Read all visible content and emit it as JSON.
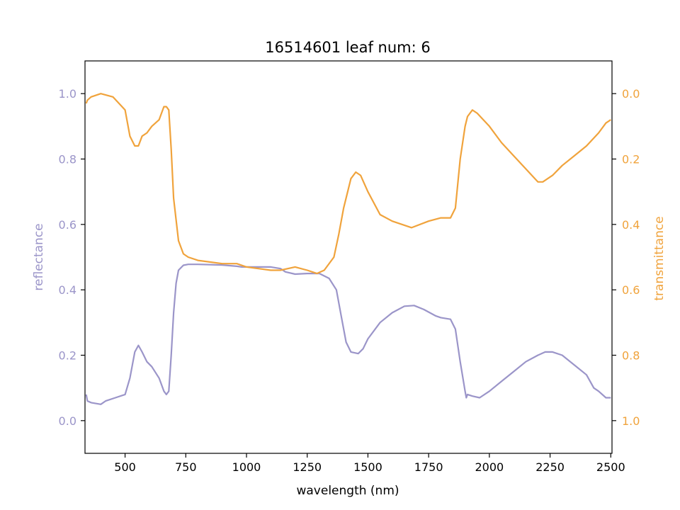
{
  "chart_data": {
    "type": "line",
    "title": "16514601 leaf num: 6",
    "xlabel": "wavelength (nm)",
    "ylabel_left": "reflectance",
    "ylabel_right": "transmittance",
    "xlim": [
      335,
      2505
    ],
    "ylim_left": [
      -0.1,
      1.1
    ],
    "ylim_right": [
      1.1,
      -0.1
    ],
    "right_axis_inverted": true,
    "xticks": [
      "500",
      "750",
      "1000",
      "1250",
      "1500",
      "1750",
      "2000",
      "2250",
      "2500"
    ],
    "yticks_left": [
      "0.0",
      "0.2",
      "0.4",
      "0.6",
      "0.8",
      "1.0"
    ],
    "yticks_right": [
      "0.0",
      "0.2",
      "0.4",
      "0.6",
      "0.8",
      "1.0"
    ],
    "grid": false,
    "legend": "none",
    "colors": {
      "reflectance": "#9b95c9",
      "transmittance": "#f0a33c",
      "axes": "#000000"
    },
    "series": [
      {
        "name": "reflectance",
        "axis": "left",
        "x": [
          340,
          345,
          360,
          400,
          420,
          460,
          500,
          520,
          540,
          555,
          570,
          590,
          610,
          640,
          660,
          670,
          680,
          690,
          700,
          710,
          720,
          740,
          760,
          800,
          900,
          960,
          980,
          1000,
          1100,
          1140,
          1160,
          1200,
          1250,
          1300,
          1340,
          1370,
          1390,
          1410,
          1430,
          1460,
          1480,
          1500,
          1550,
          1600,
          1650,
          1690,
          1730,
          1780,
          1800,
          1840,
          1860,
          1880,
          1900,
          1905,
          1910,
          1930,
          1960,
          2000,
          2050,
          2100,
          2150,
          2200,
          2230,
          2260,
          2300,
          2350,
          2400,
          2430,
          2450,
          2480,
          2500
        ],
        "values": [
          0.08,
          0.06,
          0.055,
          0.05,
          0.06,
          0.07,
          0.08,
          0.13,
          0.21,
          0.23,
          0.21,
          0.18,
          0.165,
          0.13,
          0.09,
          0.08,
          0.09,
          0.2,
          0.33,
          0.42,
          0.46,
          0.475,
          0.478,
          0.478,
          0.476,
          0.472,
          0.47,
          0.47,
          0.47,
          0.465,
          0.455,
          0.448,
          0.45,
          0.45,
          0.435,
          0.4,
          0.32,
          0.24,
          0.21,
          0.205,
          0.22,
          0.25,
          0.3,
          0.33,
          0.35,
          0.352,
          0.34,
          0.32,
          0.315,
          0.31,
          0.28,
          0.18,
          0.09,
          0.07,
          0.08,
          0.075,
          0.07,
          0.09,
          0.12,
          0.15,
          0.18,
          0.2,
          0.21,
          0.21,
          0.2,
          0.17,
          0.14,
          0.1,
          0.09,
          0.07,
          0.07
        ]
      },
      {
        "name": "transmittance",
        "axis": "right",
        "x": [
          340,
          345,
          360,
          400,
          450,
          500,
          520,
          540,
          555,
          570,
          590,
          610,
          640,
          660,
          670,
          680,
          690,
          700,
          720,
          740,
          760,
          800,
          900,
          960,
          1000,
          1100,
          1140,
          1200,
          1250,
          1290,
          1320,
          1360,
          1380,
          1400,
          1430,
          1450,
          1470,
          1500,
          1550,
          1600,
          1680,
          1750,
          1800,
          1840,
          1860,
          1880,
          1900,
          1910,
          1930,
          1950,
          2000,
          2050,
          2100,
          2150,
          2200,
          2220,
          2260,
          2300,
          2350,
          2400,
          2450,
          2480,
          2500
        ],
        "values": [
          0.03,
          0.02,
          0.01,
          0.0,
          0.01,
          0.05,
          0.13,
          0.16,
          0.16,
          0.13,
          0.12,
          0.1,
          0.08,
          0.04,
          0.04,
          0.05,
          0.17,
          0.32,
          0.45,
          0.49,
          0.5,
          0.51,
          0.52,
          0.52,
          0.53,
          0.54,
          0.54,
          0.53,
          0.54,
          0.55,
          0.54,
          0.5,
          0.43,
          0.35,
          0.26,
          0.24,
          0.25,
          0.3,
          0.37,
          0.39,
          0.41,
          0.39,
          0.38,
          0.38,
          0.35,
          0.2,
          0.1,
          0.07,
          0.05,
          0.06,
          0.1,
          0.15,
          0.19,
          0.23,
          0.27,
          0.27,
          0.25,
          0.22,
          0.19,
          0.16,
          0.12,
          0.09,
          0.08
        ]
      }
    ]
  }
}
